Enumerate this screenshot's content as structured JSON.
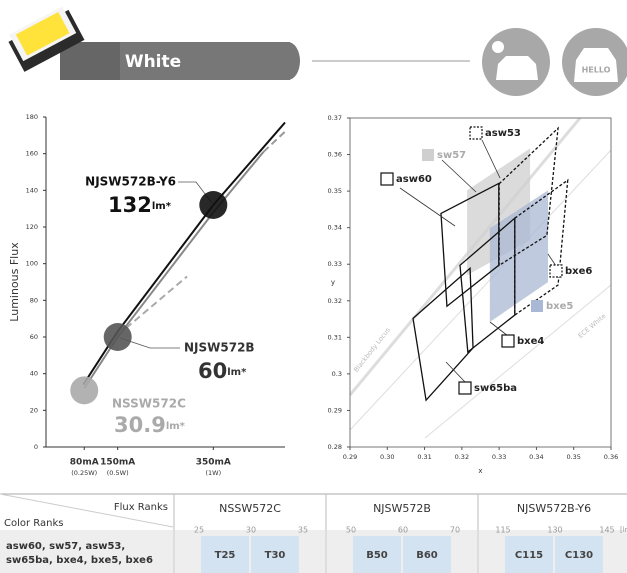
{
  "header": {
    "title": "White",
    "icon_text": "HELLO"
  },
  "chart_data": [
    {
      "type": "line",
      "ylabel": "Luminous Flux",
      "xlim": [
        0,
        500
      ],
      "ylim": [
        0,
        180
      ],
      "yticks": [
        0,
        20,
        40,
        60,
        80,
        100,
        120,
        140,
        160,
        180
      ],
      "xticks": [
        {
          "value": 80,
          "label": "80mA"
        },
        {
          "value": 150,
          "label": "150mA"
        },
        {
          "value": 350,
          "label": "350mA"
        }
      ],
      "xtick_sublabels": [
        "(0.25W)",
        "(0.5W)",
        "(1W)"
      ],
      "series": [
        {
          "color": "#111111",
          "dash": false,
          "x": [
            78,
            150,
            350,
            500
          ],
          "values": [
            34,
            63,
            132,
            177
          ]
        },
        {
          "color": "#888888",
          "dash": false,
          "x": [
            80,
            150,
            350,
            455
          ],
          "values": [
            32,
            60,
            128,
            161
          ]
        },
        {
          "color": "#999999",
          "dash": true,
          "x": [
            455,
            500
          ],
          "values": [
            161,
            172
          ]
        },
        {
          "color": "#aaaaaa",
          "dash": true,
          "x": [
            150,
            295
          ],
          "values": [
            61,
            93
          ]
        }
      ],
      "points": [
        {
          "name": "NJSW572B-Y6",
          "x": 350,
          "value": 132,
          "unit": "lm*",
          "color": "#111111"
        },
        {
          "name": "NJSW572B",
          "x": 150,
          "value": 60,
          "unit": "lm*",
          "color": "#555555"
        },
        {
          "name": "NSSW572C",
          "x": 80,
          "value": 30.9,
          "unit": "lm*",
          "color": "#aaaaaa"
        }
      ]
    },
    {
      "type": "polygon",
      "xlabel": "x",
      "ylabel": "y",
      "xlim": [
        0.29,
        0.36
      ],
      "ylim": [
        0.28,
        0.37
      ],
      "xticks": [
        0.29,
        {
          "value": 0.3,
          "label": "0.30"
        },
        0.31,
        0.32,
        0.33,
        0.34,
        0.35,
        0.36
      ],
      "yticks": [
        0.28,
        0.29,
        0.3,
        0.31,
        0.32,
        0.33,
        0.34,
        0.35,
        0.36,
        0.37
      ],
      "annotations": [
        "Blackbody Locus",
        "ECE White"
      ],
      "series": [
        {
          "name": "asw60",
          "color": "#111111",
          "style": "solid",
          "x": [
            0.3144,
            0.3299,
            0.3299,
            0.316
          ],
          "values": [
            0.3439,
            0.3521,
            0.3297,
            0.3185
          ]
        },
        {
          "name": "sw57",
          "color": "#cfcfcf",
          "style": "filled",
          "x": [
            0.3214,
            0.3383,
            0.3383,
            0.3214
          ],
          "values": [
            0.3502,
            0.3617,
            0.3366,
            0.327
          ]
        },
        {
          "name": "asw53",
          "color": "#111111",
          "style": "dashed",
          "x": [
            0.33,
            0.3458,
            0.3428,
            0.33
          ],
          "values": [
            0.352,
            0.3672,
            0.3379,
            0.3297
          ]
        },
        {
          "name": "bxe5",
          "color": "#a9b8d4",
          "style": "filled",
          "x": [
            0.3275,
            0.3431,
            0.3431,
            0.3275
          ],
          "values": [
            0.3398,
            0.3502,
            0.3251,
            0.3142
          ]
        },
        {
          "name": "bxe6",
          "color": "#111111",
          "style": "dashed",
          "x": [
            0.3342,
            0.3484,
            0.3458,
            0.3342
          ],
          "values": [
            0.3426,
            0.353,
            0.3243,
            0.3161
          ]
        },
        {
          "name": "bxe4",
          "color": "#111111",
          "style": "solid",
          "x": [
            0.3195,
            0.3342,
            0.3342,
            0.3216
          ],
          "values": [
            0.3297,
            0.3426,
            0.3161,
            0.306
          ]
        },
        {
          "name": "sw65ba",
          "color": "#111111",
          "style": "solid",
          "x": [
            0.3069,
            0.3222,
            0.323,
            0.3104
          ],
          "values": [
            0.3152,
            0.3289,
            0.3071,
            0.2928
          ]
        }
      ]
    }
  ],
  "table": {
    "corner_top": "Flux Ranks",
    "corner_bottom": "Color Ranks",
    "row_label": [
      "asw60, sw57, asw53,",
      "sw65ba, bxe4, bxe5, bxe6"
    ],
    "unit": "[lm",
    "columns": [
      {
        "name": "NSSW572C",
        "scale": [
          "25",
          "30",
          "35"
        ],
        "cells": [
          "T25",
          "T30"
        ]
      },
      {
        "name": "NJSW572B",
        "scale": [
          "50",
          "60",
          "70"
        ],
        "cells": [
          "B50",
          "B60"
        ]
      },
      {
        "name": "NJSW572B-Y6",
        "scale": [
          "115",
          "130",
          "145"
        ],
        "cells": [
          "C115",
          "C130"
        ]
      }
    ]
  }
}
